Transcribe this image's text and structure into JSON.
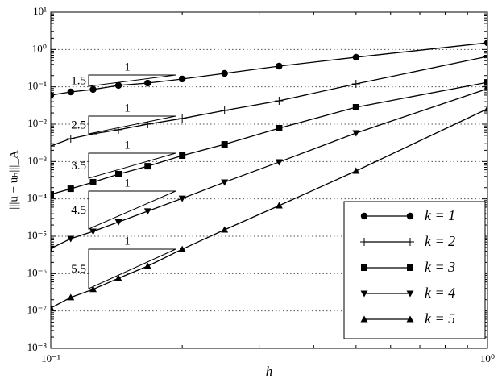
{
  "chart_data": {
    "type": "line",
    "xlabel": "h",
    "ylabel": "|||u − uₕ|||_A",
    "log_x": true,
    "log_y": true,
    "xlim": [
      0.1,
      1
    ],
    "ylim": [
      1e-08,
      10
    ],
    "xticks": [
      {
        "value": 0.1,
        "label": "10⁻¹"
      },
      {
        "value": 1,
        "label": "10⁰"
      }
    ],
    "yticks": [
      {
        "value": 1e-08,
        "label": "10⁻⁸"
      },
      {
        "value": 1e-07,
        "label": "10⁻⁷"
      },
      {
        "value": 1e-06,
        "label": "10⁻⁶"
      },
      {
        "value": 1e-05,
        "label": "10⁻⁵"
      },
      {
        "value": 0.0001,
        "label": "10⁻⁴"
      },
      {
        "value": 0.001,
        "label": "10⁻³"
      },
      {
        "value": 0.01,
        "label": "10⁻²"
      },
      {
        "value": 0.1,
        "label": "10⁻¹"
      },
      {
        "value": 1,
        "label": "10⁰"
      },
      {
        "value": 10,
        "label": "10¹"
      }
    ],
    "grid": "y",
    "legend": "lower right",
    "x": [
      1,
      0.5,
      0.3333,
      0.25,
      0.2,
      0.1667,
      0.1429,
      0.125,
      0.1111,
      0.1
    ],
    "series": [
      {
        "name": "k = 1",
        "color": "#000000",
        "marker": "circle",
        "values": [
          1.51,
          0.62,
          0.358,
          0.229,
          0.162,
          0.126,
          0.109,
          0.085,
          0.073,
          0.06
        ]
      },
      {
        "name": "k = 2",
        "color": "#000000",
        "marker": "plus",
        "values": [
          0.65,
          0.12,
          0.0423,
          0.0233,
          0.0142,
          0.01,
          0.0071,
          0.0055,
          0.0041,
          0.0026
        ]
      },
      {
        "name": "k = 3",
        "color": "#000000",
        "marker": "square",
        "values": [
          0.132,
          0.0284,
          0.0078,
          0.00288,
          0.00144,
          0.00075,
          0.00046,
          0.00028,
          0.000187,
          0.000132
        ]
      },
      {
        "name": "k = 4",
        "color": "#000000",
        "marker": "triangle-down",
        "values": [
          0.089,
          0.0058,
          0.00097,
          0.00028,
          0.000103,
          4.7e-05,
          2.4e-05,
          1.35e-05,
          8.6e-06,
          4.7e-06
        ]
      },
      {
        "name": "k = 5",
        "color": "#000000",
        "marker": "triangle-up",
        "values": [
          0.0257,
          0.00056,
          6.6e-05,
          1.49e-05,
          4.5e-06,
          1.59e-06,
          7.5e-07,
          3.8e-07,
          2.3e-07,
          1.2e-07
        ]
      }
    ],
    "slope_triangles": [
      {
        "run": "1",
        "rise": "1.5"
      },
      {
        "run": "1",
        "rise": "2.5"
      },
      {
        "run": "1",
        "rise": "3.5"
      },
      {
        "run": "1",
        "rise": "4.5"
      },
      {
        "run": "1",
        "rise": "5.5"
      }
    ]
  }
}
